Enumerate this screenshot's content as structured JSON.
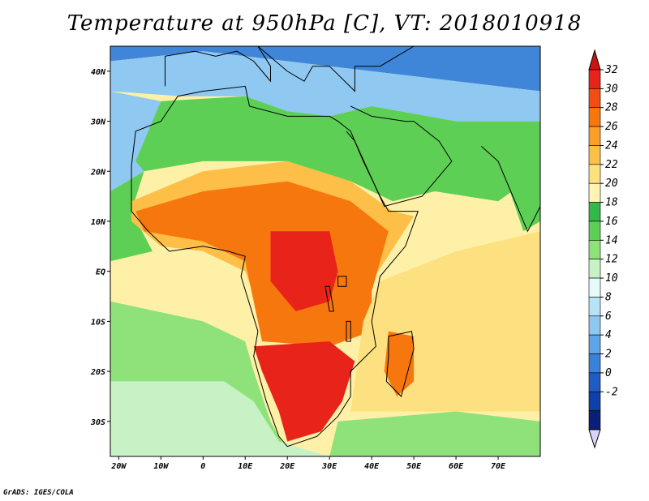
{
  "title": "Temperature at 950hPa [C], VT: 2018010918",
  "credit": "GrADS: IGES/COLA",
  "map": {
    "lon_range": [
      -22,
      80
    ],
    "lat_range": [
      -37,
      45
    ],
    "x_ticks": [
      {
        "lon": -20,
        "label": "20W"
      },
      {
        "lon": -10,
        "label": "10W"
      },
      {
        "lon": 0,
        "label": "0"
      },
      {
        "lon": 10,
        "label": "10E"
      },
      {
        "lon": 20,
        "label": "20E"
      },
      {
        "lon": 30,
        "label": "30E"
      },
      {
        "lon": 40,
        "label": "40E"
      },
      {
        "lon": 50,
        "label": "50E"
      },
      {
        "lon": 60,
        "label": "60E"
      },
      {
        "lon": 70,
        "label": "70E"
      }
    ],
    "y_ticks": [
      {
        "lat": 40,
        "label": "40N"
      },
      {
        "lat": 30,
        "label": "30N"
      },
      {
        "lat": 20,
        "label": "20N"
      },
      {
        "lat": 10,
        "label": "10N"
      },
      {
        "lat": 0,
        "label": "EQ"
      },
      {
        "lat": -10,
        "label": "10S"
      },
      {
        "lat": -20,
        "label": "20S"
      },
      {
        "lat": -30,
        "label": "30S"
      }
    ]
  },
  "colorbar": {
    "labels": [
      "32",
      "30",
      "28",
      "26",
      "24",
      "22",
      "20",
      "18",
      "16",
      "14",
      "12",
      "10",
      "8",
      "6",
      "4",
      "2",
      "0",
      "-2"
    ],
    "colors": [
      "#e8231a",
      "#f24e13",
      "#f7770f",
      "#fb9f28",
      "#fdbf48",
      "#fde07f",
      "#fff4b3",
      "#33b84a",
      "#5ecf55",
      "#8fe27a",
      "#c8f2c6",
      "#e6fafa",
      "#b8e2f5",
      "#8ec8f0",
      "#5ea6e8",
      "#3a82d9",
      "#1f5dc4",
      "#0f3fa8",
      "#0a1f7a"
    ],
    "top_color": "#c8150f",
    "bottom_color": "#d9d4f7"
  },
  "background": {
    "north_cold": "#3f86d9",
    "mediterranean": "#8fc8f0",
    "sahara": "#5ecf55",
    "ocean_south_atl": "#8fe27a",
    "ocean_eq": "#fff0a8",
    "indian_ocean": "#fde07f",
    "cape_ocean": "#c8f2c6",
    "land_hot": "#f7770f",
    "land_hotter": "#e8231a",
    "sahel": "#fdbf48",
    "coast_line": "#000000"
  }
}
